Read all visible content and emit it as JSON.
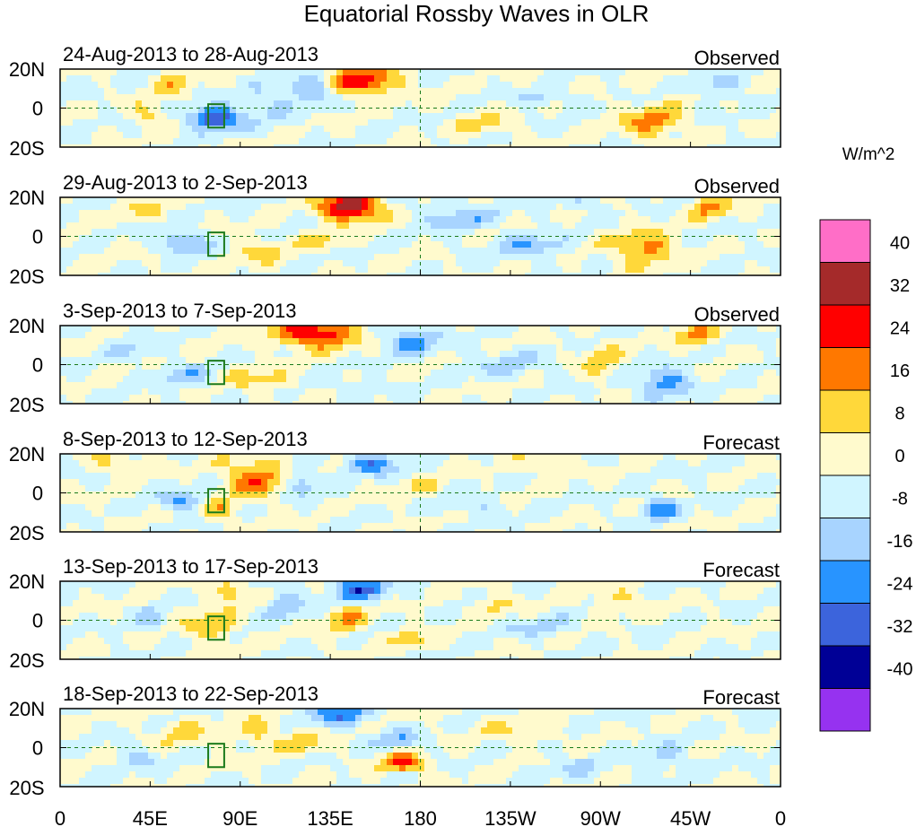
{
  "chart_data": {
    "type": "heatmap",
    "title": "Equatorial Rossby Waves in OLR",
    "units": "W/m^2",
    "lat_range": [
      -20,
      20
    ],
    "lon_range": [
      0,
      360
    ],
    "ytick_labels": [
      "20N",
      "0",
      "20S"
    ],
    "xtick_labels": [
      "0",
      "45E",
      "90E",
      "135E",
      "180",
      "135W",
      "90W",
      "45W",
      "0"
    ],
    "colorbar": {
      "levels": [
        40,
        32,
        24,
        16,
        8,
        0,
        -8,
        -16,
        -24,
        -32,
        -40
      ],
      "level_labels": [
        "40",
        "32",
        "24",
        "16",
        "8",
        "0",
        "-8",
        "-16",
        "-24",
        "-32",
        "-40"
      ],
      "colors": [
        "#ff6ec7",
        "#a52a2a",
        "#ff0000",
        "#ff7800",
        "#ffd83a",
        "#fffacd",
        "#d0f5ff",
        "#a8d4ff",
        "#2894ff",
        "#3c64dc",
        "#000096",
        "#9632f0"
      ]
    },
    "panels": [
      {
        "period": "24-Aug-2013 to 28-Aug-2013",
        "status": "Observed",
        "anomalies": [
          {
            "lon": 152,
            "lat": 14,
            "sx": 12,
            "sy": 5,
            "v": 30
          },
          {
            "lon": 125,
            "lat": 10,
            "sx": 8,
            "sy": 5,
            "v": -18
          },
          {
            "lon": 77,
            "lat": -5,
            "sx": 9,
            "sy": 4,
            "v": -34
          },
          {
            "lon": 45,
            "lat": -3,
            "sx": 6,
            "sy": 4,
            "v": 12
          },
          {
            "lon": 57,
            "lat": 12,
            "sx": 7,
            "sy": 5,
            "v": 10
          },
          {
            "lon": 295,
            "lat": -7,
            "sx": 11,
            "sy": 6,
            "v": 18
          },
          {
            "lon": 242,
            "lat": 5,
            "sx": 12,
            "sy": 3,
            "v": -10
          },
          {
            "lon": 210,
            "lat": -8,
            "sx": 10,
            "sy": 4,
            "v": 10
          },
          {
            "lon": 103,
            "lat": 2,
            "sx": 8,
            "sy": 6,
            "v": -10
          },
          {
            "lon": 330,
            "lat": 12,
            "sx": 9,
            "sy": 5,
            "v": -9
          }
        ]
      },
      {
        "period": "29-Aug-2013 to 2-Sep-2013",
        "status": "Observed",
        "anomalies": [
          {
            "lon": 145,
            "lat": 15,
            "sx": 10,
            "sy": 5,
            "v": 42
          },
          {
            "lon": 62,
            "lat": -3,
            "sx": 8,
            "sy": 4,
            "v": -20
          },
          {
            "lon": 235,
            "lat": -5,
            "sx": 12,
            "sy": 4,
            "v": -14
          },
          {
            "lon": 292,
            "lat": -6,
            "sx": 11,
            "sy": 6,
            "v": 20
          },
          {
            "lon": 325,
            "lat": 15,
            "sx": 7,
            "sy": 4,
            "v": 18
          },
          {
            "lon": 200,
            "lat": 10,
            "sx": 14,
            "sy": 5,
            "v": -12
          },
          {
            "lon": 100,
            "lat": -8,
            "sx": 10,
            "sy": 5,
            "v": 10
          },
          {
            "lon": 132,
            "lat": -2,
            "sx": 7,
            "sy": 4,
            "v": 10
          },
          {
            "lon": 262,
            "lat": 17,
            "sx": 7,
            "sy": 3,
            "v": -9
          },
          {
            "lon": 40,
            "lat": 14,
            "sx": 8,
            "sy": 4,
            "v": 8
          }
        ]
      },
      {
        "period": "3-Sep-2013 to 7-Sep-2013",
        "status": "Observed",
        "anomalies": [
          {
            "lon": 128,
            "lat": 16,
            "sx": 14,
            "sy": 5,
            "v": 34
          },
          {
            "lon": 175,
            "lat": 12,
            "sx": 10,
            "sy": 5,
            "v": -18
          },
          {
            "lon": 302,
            "lat": -9,
            "sx": 9,
            "sy": 5,
            "v": -22
          },
          {
            "lon": 318,
            "lat": 15,
            "sx": 7,
            "sy": 4,
            "v": 18
          },
          {
            "lon": 62,
            "lat": -6,
            "sx": 8,
            "sy": 4,
            "v": -14
          },
          {
            "lon": 100,
            "lat": -8,
            "sx": 10,
            "sy": 4,
            "v": 12
          },
          {
            "lon": 270,
            "lat": 2,
            "sx": 6,
            "sy": 6,
            "v": 12
          },
          {
            "lon": 225,
            "lat": 0,
            "sx": 14,
            "sy": 5,
            "v": -10
          },
          {
            "lon": 35,
            "lat": 8,
            "sx": 7,
            "sy": 5,
            "v": -9
          },
          {
            "lon": 150,
            "lat": -12,
            "sx": 8,
            "sy": 3,
            "v": -9
          }
        ]
      },
      {
        "period": "8-Sep-2013 to 12-Sep-2013",
        "status": "Forecast",
        "anomalies": [
          {
            "lon": 98,
            "lat": 8,
            "sx": 11,
            "sy": 7,
            "v": 22
          },
          {
            "lon": 155,
            "lat": 15,
            "sx": 10,
            "sy": 4,
            "v": -22
          },
          {
            "lon": 60,
            "lat": -4,
            "sx": 8,
            "sy": 4,
            "v": -16
          },
          {
            "lon": 300,
            "lat": -8,
            "sx": 7,
            "sy": 4,
            "v": -20
          },
          {
            "lon": 120,
            "lat": 5,
            "sx": 6,
            "sy": 5,
            "v": -16
          },
          {
            "lon": 30,
            "lat": 15,
            "sx": 9,
            "sy": 4,
            "v": 10
          },
          {
            "lon": 180,
            "lat": 2,
            "sx": 9,
            "sy": 4,
            "v": 8
          },
          {
            "lon": 242,
            "lat": 15,
            "sx": 8,
            "sy": 3,
            "v": 10
          },
          {
            "lon": 205,
            "lat": -6,
            "sx": 12,
            "sy": 4,
            "v": -9
          },
          {
            "lon": 80,
            "lat": -10,
            "sx": 6,
            "sy": 4,
            "v": 14
          }
        ]
      },
      {
        "period": "13-Sep-2013 to 17-Sep-2013",
        "status": "Forecast",
        "anomalies": [
          {
            "lon": 150,
            "lat": 16,
            "sx": 10,
            "sy": 4,
            "v": -26
          },
          {
            "lon": 75,
            "lat": -3,
            "sx": 8,
            "sy": 5,
            "v": 18
          },
          {
            "lon": 85,
            "lat": 15,
            "sx": 6,
            "sy": 4,
            "v": 18
          },
          {
            "lon": 143,
            "lat": 0,
            "sx": 8,
            "sy": 5,
            "v": 14
          },
          {
            "lon": 113,
            "lat": 8,
            "sx": 7,
            "sy": 5,
            "v": -14
          },
          {
            "lon": 175,
            "lat": -10,
            "sx": 6,
            "sy": 3,
            "v": 14
          },
          {
            "lon": 218,
            "lat": 8,
            "sx": 8,
            "sy": 4,
            "v": 10
          },
          {
            "lon": 282,
            "lat": 10,
            "sx": 10,
            "sy": 4,
            "v": 10
          },
          {
            "lon": 238,
            "lat": -3,
            "sx": 12,
            "sy": 4,
            "v": -10
          },
          {
            "lon": 45,
            "lat": 0,
            "sx": 6,
            "sy": 4,
            "v": -10
          }
        ]
      },
      {
        "period": "18-Sep-2013 to 22-Sep-2013",
        "status": "Forecast",
        "anomalies": [
          {
            "lon": 172,
            "lat": -8,
            "sx": 7,
            "sy": 3,
            "v": 30
          },
          {
            "lon": 140,
            "lat": 17,
            "sx": 11,
            "sy": 4,
            "v": -22
          },
          {
            "lon": 170,
            "lat": 4,
            "sx": 9,
            "sy": 3,
            "v": -14
          },
          {
            "lon": 60,
            "lat": 8,
            "sx": 9,
            "sy": 5,
            "v": 10
          },
          {
            "lon": 100,
            "lat": 8,
            "sx": 9,
            "sy": 5,
            "v": 12
          },
          {
            "lon": 122,
            "lat": 2,
            "sx": 7,
            "sy": 4,
            "v": 12
          },
          {
            "lon": 302,
            "lat": -5,
            "sx": 10,
            "sy": 5,
            "v": -9
          },
          {
            "lon": 40,
            "lat": -6,
            "sx": 7,
            "sy": 4,
            "v": -10
          },
          {
            "lon": 230,
            "lat": 8,
            "sx": 14,
            "sy": 4,
            "v": 8
          },
          {
            "lon": 260,
            "lat": -10,
            "sx": 10,
            "sy": 4,
            "v": -8
          }
        ]
      }
    ]
  }
}
